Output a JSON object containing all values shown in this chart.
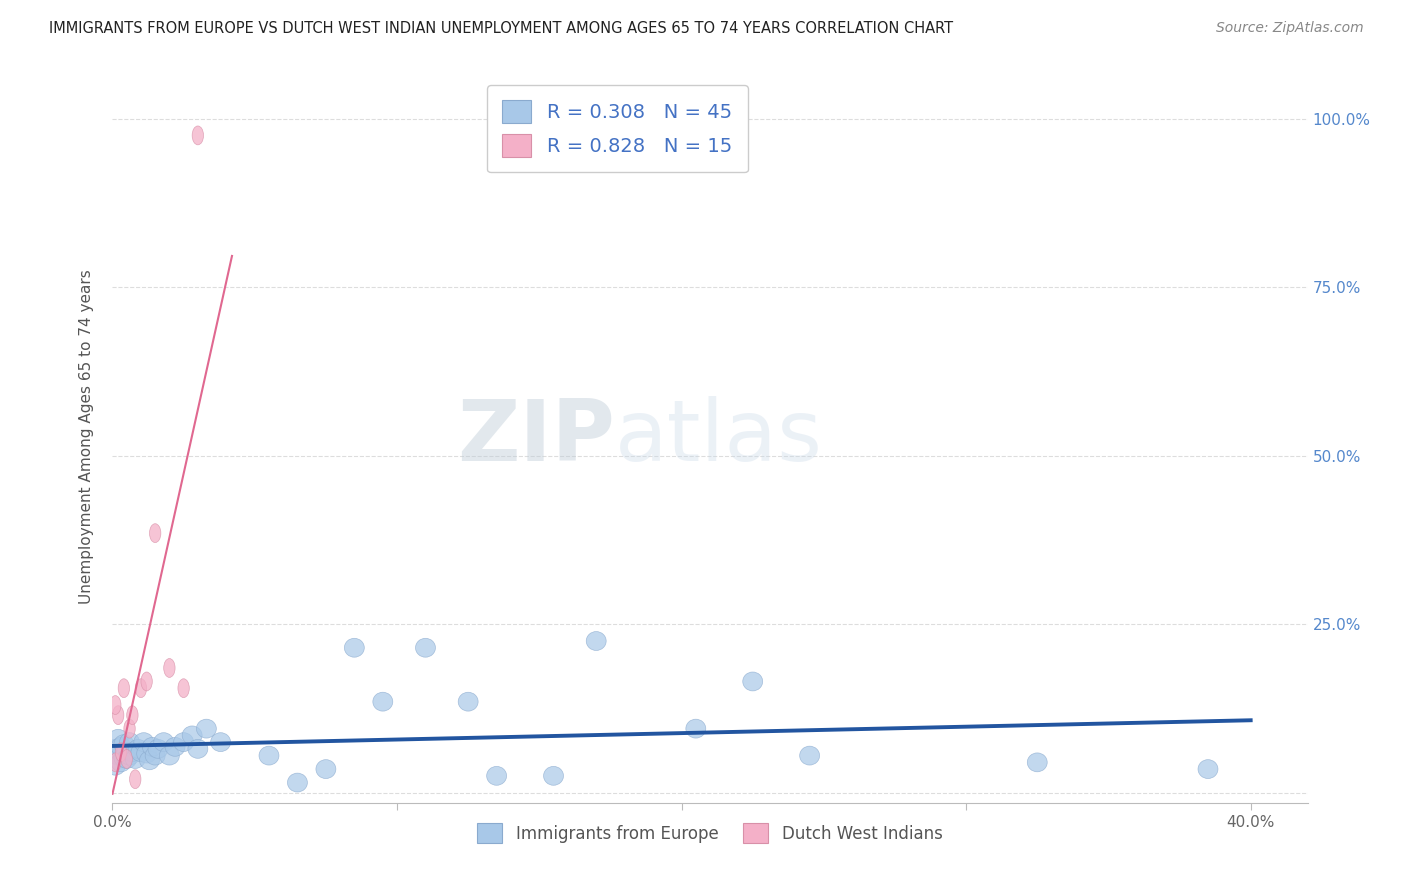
{
  "title": "IMMIGRANTS FROM EUROPE VS DUTCH WEST INDIAN UNEMPLOYMENT AMONG AGES 65 TO 74 YEARS CORRELATION CHART",
  "source": "Source: ZipAtlas.com",
  "ylabel": "Unemployment Among Ages 65 to 74 years",
  "xlim": [
    0.0,
    0.42
  ],
  "ylim": [
    -0.015,
    1.07
  ],
  "xticks": [
    0.0,
    0.1,
    0.2,
    0.3,
    0.4
  ],
  "xticklabels": [
    "0.0%",
    "",
    "",
    "",
    "40.0%"
  ],
  "yticks": [
    0.0,
    0.25,
    0.5,
    0.75,
    1.0
  ],
  "yticklabels_right": [
    "",
    "25.0%",
    "50.0%",
    "75.0%",
    "100.0%"
  ],
  "blue_color": "#A8C8E8",
  "pink_color": "#F4B0C8",
  "blue_line_color": "#2255A0",
  "pink_line_color": "#E06890",
  "watermark_zip": "ZIP",
  "watermark_atlas": "atlas",
  "legend_label_blue": "R = 0.308   N = 45",
  "legend_label_pink": "R = 0.828   N = 15",
  "background_color": "#FFFFFF",
  "grid_color": "#DDDDDD",
  "blue_scatter_x": [
    0.001,
    0.001,
    0.002,
    0.002,
    0.003,
    0.003,
    0.004,
    0.004,
    0.005,
    0.005,
    0.006,
    0.006,
    0.007,
    0.008,
    0.009,
    0.01,
    0.011,
    0.012,
    0.013,
    0.014,
    0.015,
    0.016,
    0.018,
    0.02,
    0.022,
    0.025,
    0.028,
    0.03,
    0.033,
    0.038,
    0.055,
    0.065,
    0.075,
    0.085,
    0.095,
    0.11,
    0.125,
    0.135,
    0.155,
    0.17,
    0.205,
    0.225,
    0.245,
    0.325,
    0.385
  ],
  "blue_scatter_y": [
    0.04,
    0.065,
    0.055,
    0.08,
    0.045,
    0.068,
    0.052,
    0.072,
    0.06,
    0.05,
    0.055,
    0.075,
    0.06,
    0.05,
    0.065,
    0.06,
    0.075,
    0.058,
    0.048,
    0.068,
    0.055,
    0.065,
    0.075,
    0.055,
    0.068,
    0.075,
    0.085,
    0.065,
    0.095,
    0.075,
    0.055,
    0.015,
    0.035,
    0.215,
    0.135,
    0.215,
    0.135,
    0.025,
    0.025,
    0.225,
    0.095,
    0.165,
    0.055,
    0.045,
    0.035
  ],
  "pink_scatter_x": [
    0.001,
    0.002,
    0.003,
    0.004,
    0.005,
    0.006,
    0.007,
    0.008,
    0.01,
    0.012,
    0.015,
    0.02,
    0.025,
    0.03,
    0.001
  ],
  "pink_scatter_y": [
    0.045,
    0.115,
    0.06,
    0.155,
    0.05,
    0.095,
    0.115,
    0.02,
    0.155,
    0.165,
    0.385,
    0.185,
    0.155,
    0.975,
    0.13
  ],
  "pink_line_x": [
    0.0,
    0.032
  ],
  "pink_line_y_start": 0.005,
  "pink_line_slope": 31.0,
  "blue_line_x": [
    0.0,
    0.4
  ],
  "blue_line_intercept": 0.042,
  "blue_line_slope": 0.2
}
